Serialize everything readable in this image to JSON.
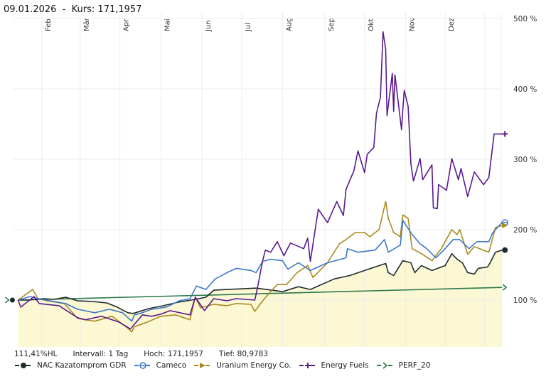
{
  "header": {
    "date": "09.01.2026",
    "separator": "-",
    "kurs_label": "Kurs: 171,1957"
  },
  "stats": {
    "hl": "111,41%HL",
    "interval": "Intervall: 1 Tag",
    "high": "Hoch: 171,1957",
    "low": "Tief: 80,9783"
  },
  "chart_data": {
    "type": "line",
    "title": "",
    "xlabel": "",
    "ylabel": "",
    "x_unit": "days since start",
    "xlim": [
      0,
      372
    ],
    "ylim": [
      33,
      508
    ],
    "grid": true,
    "legend_position": "bottom",
    "xticks": [
      {
        "label": "Feb",
        "x": 22
      },
      {
        "label": "Mär",
        "x": 51
      },
      {
        "label": "Apr",
        "x": 81
      },
      {
        "label": "Mai",
        "x": 112
      },
      {
        "label": "Jun",
        "x": 143
      },
      {
        "label": "Jul",
        "x": 173
      },
      {
        "label": "Aug",
        "x": 204
      },
      {
        "label": "Sep",
        "x": 236
      },
      {
        "label": "Okt",
        "x": 266
      },
      {
        "label": "Nov",
        "x": 297
      },
      {
        "label": "Dez",
        "x": 327
      },
      {
        "label": "",
        "x": 357
      }
    ],
    "yticks": [
      {
        "label": "100 %",
        "y": 100
      },
      {
        "label": "200 %",
        "y": 200
      },
      {
        "label": "300 %",
        "y": 300
      },
      {
        "label": "400 %",
        "y": 400
      },
      {
        "label": "500 %",
        "y": 500
      }
    ],
    "series": [
      {
        "name": "NAC Kazatomprom GDR",
        "color": "#1f2a2a",
        "marker": "dot",
        "fill": "#fcf8d4",
        "points": [
          [
            4,
            100
          ],
          [
            12,
            100
          ],
          [
            23,
            102
          ],
          [
            31,
            101
          ],
          [
            40,
            104
          ],
          [
            49,
            99
          ],
          [
            60,
            98
          ],
          [
            71,
            96
          ],
          [
            79,
            90
          ],
          [
            87,
            82
          ],
          [
            91,
            81
          ],
          [
            103,
            88
          ],
          [
            114,
            92
          ],
          [
            125,
            97
          ],
          [
            135,
            100
          ],
          [
            146,
            104
          ],
          [
            152,
            114
          ],
          [
            162,
            115
          ],
          [
            173,
            116
          ],
          [
            184,
            117
          ],
          [
            204,
            112
          ],
          [
            216,
            119
          ],
          [
            225,
            115
          ],
          [
            243,
            130
          ],
          [
            255,
            135
          ],
          [
            266,
            142
          ],
          [
            282,
            152
          ],
          [
            284,
            139
          ],
          [
            288,
            135
          ],
          [
            295,
            156
          ],
          [
            301,
            153
          ],
          [
            304,
            139
          ],
          [
            309,
            149
          ],
          [
            317,
            142
          ],
          [
            327,
            149
          ],
          [
            332,
            166
          ],
          [
            336,
            158
          ],
          [
            340,
            153
          ],
          [
            344,
            139
          ],
          [
            349,
            137
          ],
          [
            352,
            145
          ],
          [
            359,
            147
          ],
          [
            361,
            153
          ],
          [
            365,
            168
          ],
          [
            370,
            171
          ]
        ]
      },
      {
        "name": "Cameco",
        "color": "#3b78c8",
        "marker": "diamond",
        "points": [
          [
            4,
            100
          ],
          [
            13,
            105
          ],
          [
            19,
            102
          ],
          [
            40,
            95
          ],
          [
            49,
            87
          ],
          [
            62,
            82
          ],
          [
            73,
            87
          ],
          [
            83,
            82
          ],
          [
            90,
            70
          ],
          [
            92,
            79
          ],
          [
            98,
            82
          ],
          [
            105,
            87
          ],
          [
            116,
            90
          ],
          [
            126,
            99
          ],
          [
            134,
            102
          ],
          [
            139,
            120
          ],
          [
            146,
            115
          ],
          [
            153,
            130
          ],
          [
            162,
            139
          ],
          [
            169,
            145
          ],
          [
            180,
            142
          ],
          [
            184,
            139
          ],
          [
            189,
            155
          ],
          [
            195,
            158
          ],
          [
            204,
            156
          ],
          [
            208,
            144
          ],
          [
            216,
            153
          ],
          [
            225,
            142
          ],
          [
            238,
            153
          ],
          [
            252,
            160
          ],
          [
            253,
            173
          ],
          [
            261,
            168
          ],
          [
            274,
            171
          ],
          [
            281,
            186
          ],
          [
            284,
            168
          ],
          [
            293,
            178
          ],
          [
            295,
            213
          ],
          [
            302,
            193
          ],
          [
            308,
            180
          ],
          [
            313,
            173
          ],
          [
            320,
            160
          ],
          [
            327,
            173
          ],
          [
            333,
            186
          ],
          [
            338,
            186
          ],
          [
            345,
            173
          ],
          [
            351,
            183
          ],
          [
            360,
            183
          ],
          [
            363,
            196
          ],
          [
            370,
            210
          ]
        ]
      },
      {
        "name": "Uranium Energy Co.",
        "color": "#a88a1f",
        "marker": "triangle",
        "points": [
          [
            4,
            100
          ],
          [
            15,
            115
          ],
          [
            19,
            102
          ],
          [
            26,
            99
          ],
          [
            39,
            95
          ],
          [
            49,
            74
          ],
          [
            55,
            72
          ],
          [
            62,
            70
          ],
          [
            75,
            77
          ],
          [
            87,
            60
          ],
          [
            90,
            55
          ],
          [
            92,
            62
          ],
          [
            102,
            69
          ],
          [
            112,
            77
          ],
          [
            123,
            79
          ],
          [
            134,
            72
          ],
          [
            138,
            104
          ],
          [
            142,
            89
          ],
          [
            152,
            94
          ],
          [
            162,
            92
          ],
          [
            169,
            95
          ],
          [
            180,
            94
          ],
          [
            183,
            84
          ],
          [
            189,
            99
          ],
          [
            195,
            112
          ],
          [
            200,
            122
          ],
          [
            207,
            122
          ],
          [
            215,
            139
          ],
          [
            223,
            149
          ],
          [
            227,
            132
          ],
          [
            238,
            153
          ],
          [
            247,
            180
          ],
          [
            252,
            186
          ],
          [
            259,
            196
          ],
          [
            266,
            196
          ],
          [
            270,
            190
          ],
          [
            277,
            200
          ],
          [
            282,
            240
          ],
          [
            284,
            216
          ],
          [
            288,
            196
          ],
          [
            293,
            190
          ],
          [
            295,
            221
          ],
          [
            299,
            216
          ],
          [
            302,
            173
          ],
          [
            309,
            166
          ],
          [
            317,
            156
          ],
          [
            324,
            173
          ],
          [
            332,
            200
          ],
          [
            336,
            193
          ],
          [
            338,
            200
          ],
          [
            344,
            165
          ],
          [
            349,
            176
          ],
          [
            360,
            168
          ],
          [
            365,
            203
          ],
          [
            370,
            206
          ]
        ]
      },
      {
        "name": "Energy Fuels",
        "color": "#5a1a8e",
        "marker": "plus",
        "points": [
          [
            4,
            100
          ],
          [
            6,
            90
          ],
          [
            16,
            105
          ],
          [
            20,
            95
          ],
          [
            35,
            92
          ],
          [
            49,
            75
          ],
          [
            55,
            72
          ],
          [
            67,
            77
          ],
          [
            80,
            69
          ],
          [
            89,
            59
          ],
          [
            98,
            79
          ],
          [
            105,
            77
          ],
          [
            112,
            80
          ],
          [
            119,
            85
          ],
          [
            134,
            79
          ],
          [
            138,
            104
          ],
          [
            145,
            85
          ],
          [
            152,
            102
          ],
          [
            162,
            99
          ],
          [
            169,
            102
          ],
          [
            183,
            100
          ],
          [
            185,
            117
          ],
          [
            189,
            156
          ],
          [
            191,
            171
          ],
          [
            195,
            168
          ],
          [
            200,
            183
          ],
          [
            205,
            163
          ],
          [
            210,
            181
          ],
          [
            220,
            173
          ],
          [
            223,
            188
          ],
          [
            225,
            155
          ],
          [
            231,
            229
          ],
          [
            238,
            210
          ],
          [
            245,
            240
          ],
          [
            250,
            220
          ],
          [
            252,
            257
          ],
          [
            258,
            284
          ],
          [
            261,
            312
          ],
          [
            266,
            281
          ],
          [
            268,
            307
          ],
          [
            273,
            317
          ],
          [
            275,
            365
          ],
          [
            278,
            388
          ],
          [
            280,
            481
          ],
          [
            282,
            456
          ],
          [
            283,
            362
          ],
          [
            287,
            422
          ],
          [
            288,
            368
          ],
          [
            289,
            420
          ],
          [
            294,
            342
          ],
          [
            295,
            372
          ],
          [
            296,
            398
          ],
          [
            299,
            375
          ],
          [
            301,
            294
          ],
          [
            303,
            269
          ],
          [
            308,
            301
          ],
          [
            310,
            271
          ],
          [
            317,
            292
          ],
          [
            318,
            231
          ],
          [
            321,
            230
          ],
          [
            322,
            264
          ],
          [
            328,
            256
          ],
          [
            332,
            301
          ],
          [
            337,
            271
          ],
          [
            339,
            287
          ],
          [
            344,
            247
          ],
          [
            349,
            282
          ],
          [
            356,
            264
          ],
          [
            360,
            274
          ],
          [
            364,
            336
          ],
          [
            370,
            336
          ]
        ]
      },
      {
        "name": "PERF_20",
        "color": "#2b7a4b",
        "marker": "arrow",
        "points": [
          [
            4,
            100
          ],
          [
            370,
            118
          ]
        ]
      }
    ]
  }
}
